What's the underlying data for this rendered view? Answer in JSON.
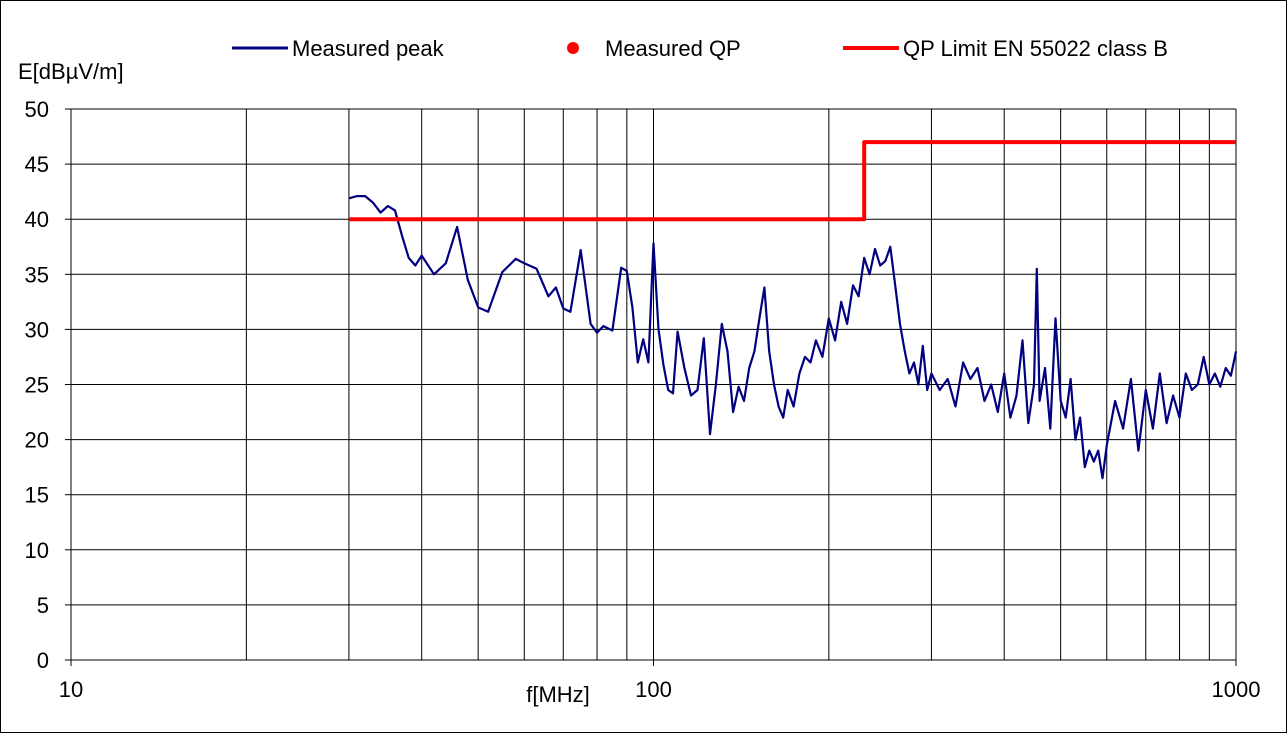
{
  "chart_data": {
    "type": "line",
    "x_scale": "log",
    "xlim": [
      10,
      1000
    ],
    "ylim": [
      0,
      50
    ],
    "xlabel": "f[MHz]",
    "ylabel": "E[dBµV/m]",
    "x_ticks": [
      10,
      100,
      1000
    ],
    "x_tick_labels": [
      "10",
      "100",
      "1000"
    ],
    "x_grid": [
      20,
      30,
      40,
      50,
      60,
      70,
      80,
      90,
      100,
      200,
      300,
      400,
      500,
      600,
      700,
      800,
      900,
      1000
    ],
    "y_ticks": [
      0,
      5,
      10,
      15,
      20,
      25,
      30,
      35,
      40,
      45,
      50
    ],
    "grid": true,
    "legend_position": "top",
    "legend": [
      {
        "label": "Measured peak",
        "style": "line",
        "color": "#000080"
      },
      {
        "label": "Measured QP",
        "style": "dot",
        "color": "#ff0000"
      },
      {
        "label": "QP Limit EN 55022 class B",
        "style": "line",
        "color": "#ff0000"
      }
    ],
    "series": [
      {
        "name": "Measured peak",
        "color": "#000080",
        "x": [
          30,
          31,
          32,
          33,
          34,
          35,
          36,
          37,
          38,
          39,
          40,
          42,
          44,
          46,
          48,
          50,
          52,
          55,
          58,
          60,
          63,
          66,
          68,
          70,
          72,
          75,
          78,
          80,
          82,
          85,
          88,
          90,
          92,
          94,
          96,
          98,
          100,
          102,
          104,
          106,
          108,
          110,
          113,
          116,
          119,
          122,
          125,
          128,
          131,
          134,
          137,
          140,
          143,
          146,
          149,
          152,
          155,
          158,
          161,
          164,
          167,
          170,
          174,
          178,
          182,
          186,
          190,
          195,
          200,
          205,
          210,
          215,
          220,
          225,
          230,
          235,
          240,
          245,
          250,
          255,
          260,
          265,
          270,
          275,
          280,
          285,
          290,
          295,
          300,
          310,
          320,
          330,
          340,
          350,
          360,
          370,
          380,
          390,
          400,
          410,
          420,
          430,
          440,
          450,
          455,
          460,
          470,
          480,
          490,
          500,
          510,
          520,
          530,
          540,
          550,
          560,
          570,
          580,
          590,
          600,
          620,
          640,
          660,
          680,
          700,
          720,
          740,
          760,
          780,
          800,
          820,
          840,
          860,
          880,
          900,
          920,
          940,
          960,
          980,
          1000
        ],
        "y": [
          41.9,
          42.1,
          42.1,
          41.5,
          40.6,
          41.2,
          40.8,
          38.5,
          36.5,
          35.8,
          36.7,
          35.0,
          36.0,
          39.3,
          34.5,
          32.0,
          31.6,
          35.2,
          36.4,
          36.0,
          35.5,
          33.0,
          33.8,
          31.9,
          31.6,
          37.2,
          30.5,
          29.7,
          30.3,
          29.9,
          35.6,
          35.3,
          32.0,
          27.0,
          29.1,
          27.0,
          37.8,
          30.0,
          26.8,
          24.5,
          24.2,
          29.8,
          26.5,
          24.0,
          24.5,
          29.2,
          20.5,
          25.0,
          30.5,
          28.0,
          22.5,
          24.8,
          23.5,
          26.5,
          28.0,
          31.0,
          33.8,
          28.0,
          25.0,
          23.0,
          22.0,
          24.5,
          23.0,
          26.0,
          27.5,
          27.0,
          29.0,
          27.5,
          31.0,
          29.0,
          32.5,
          30.5,
          34.0,
          33.0,
          36.5,
          35.0,
          37.3,
          35.8,
          36.2,
          37.5,
          34.0,
          30.5,
          28.0,
          26.0,
          27.0,
          25.0,
          28.5,
          24.5,
          26.0,
          24.5,
          25.5,
          23.0,
          27.0,
          25.5,
          26.5,
          23.5,
          25.0,
          22.5,
          26.0,
          22.0,
          24.0,
          29.0,
          21.5,
          25.0,
          35.5,
          23.5,
          26.5,
          21.0,
          31.0,
          23.5,
          22.0,
          25.5,
          20.0,
          22.0,
          17.5,
          19.0,
          18.0,
          19.0,
          16.5,
          19.5,
          23.5,
          21.0,
          25.5,
          19.0,
          24.5,
          21.0,
          26.0,
          21.5,
          24.0,
          22.0,
          26.0,
          24.5,
          25.0,
          27.5,
          25.0,
          26.0,
          24.8,
          26.5,
          25.8,
          28.0
        ]
      },
      {
        "name": "QP Limit EN 55022 class B",
        "color": "#ff0000",
        "x": [
          30,
          230,
          230,
          1000
        ],
        "y": [
          40,
          40,
          47,
          47
        ]
      }
    ]
  }
}
